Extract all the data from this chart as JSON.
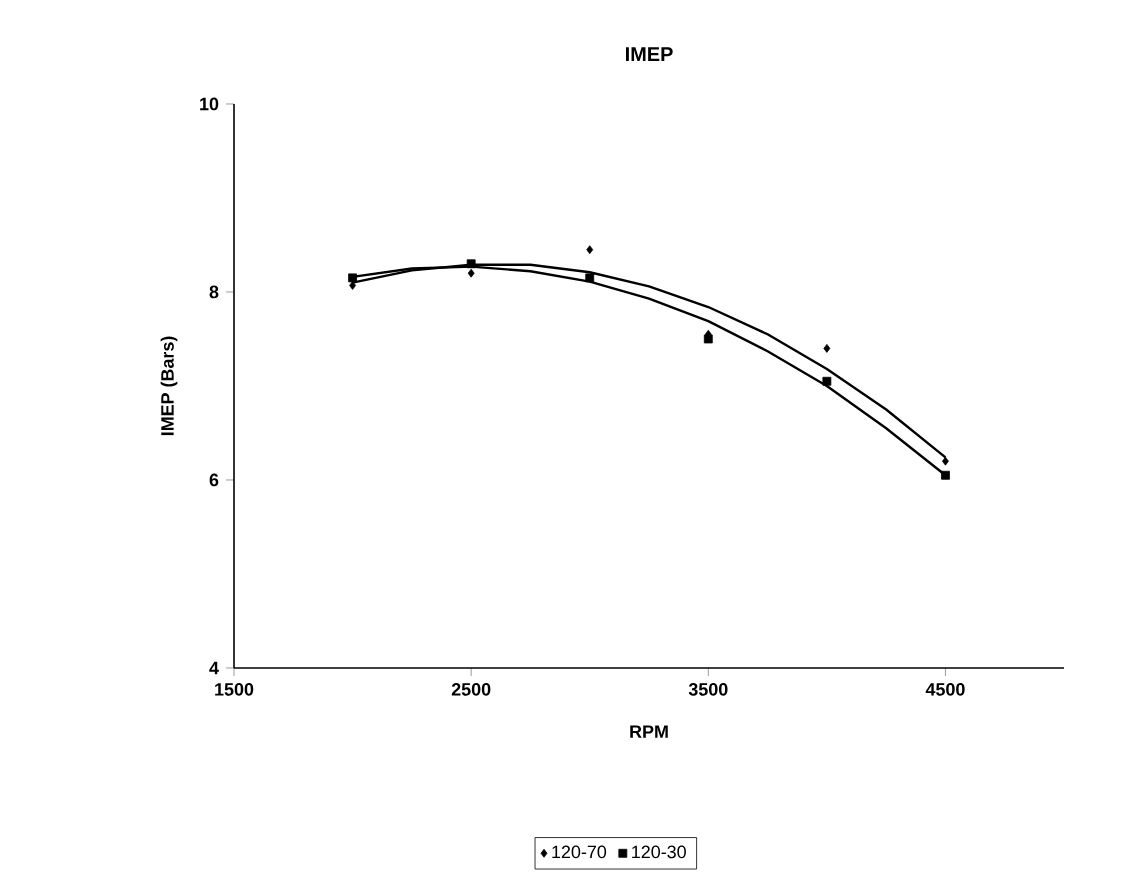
{
  "chart_data": {
    "type": "scatter",
    "title": "IMEP",
    "xlabel": "RPM",
    "ylabel": "IMEP (Bars)",
    "xlim": [
      1500,
      5000
    ],
    "xticks": [
      1500,
      2500,
      3500,
      4500
    ],
    "ylim": [
      4,
      10
    ],
    "yticks": [
      4,
      6,
      8,
      10
    ],
    "grid": false,
    "legend": "bottom",
    "series": [
      {
        "name": "120-70",
        "color": "#000000",
        "marker": "diamond",
        "x": [
          2000,
          2500,
          3000,
          3500,
          4000,
          4500
        ],
        "values": [
          8.07,
          8.2,
          8.45,
          7.55,
          7.4,
          6.2
        ]
      },
      {
        "name": "120-30",
        "color": "#000000",
        "marker": "square",
        "x": [
          2000,
          2500,
          3000,
          3500,
          4000,
          4500
        ],
        "values": [
          8.15,
          8.3,
          8.15,
          7.5,
          7.05,
          6.05
        ]
      },
      {
        "type": "line",
        "color": "#000000",
        "marker": "none",
        "x": [
          2000,
          2250,
          2500,
          2750,
          3000,
          3250,
          3500,
          3750,
          4000,
          4250,
          4500
        ],
        "values": [
          8.1,
          8.23,
          8.29,
          8.29,
          8.21,
          8.06,
          7.84,
          7.55,
          7.18,
          6.75,
          6.24
        ]
      },
      {
        "type": "line",
        "color": "#000000",
        "marker": "none",
        "x": [
          2000,
          2250,
          2500,
          2750,
          3000,
          3250,
          3500,
          3750,
          4000,
          4250,
          4500
        ],
        "values": [
          8.16,
          8.25,
          8.27,
          8.22,
          8.11,
          7.93,
          7.69,
          7.37,
          7.0,
          6.55,
          6.05
        ]
      }
    ]
  }
}
